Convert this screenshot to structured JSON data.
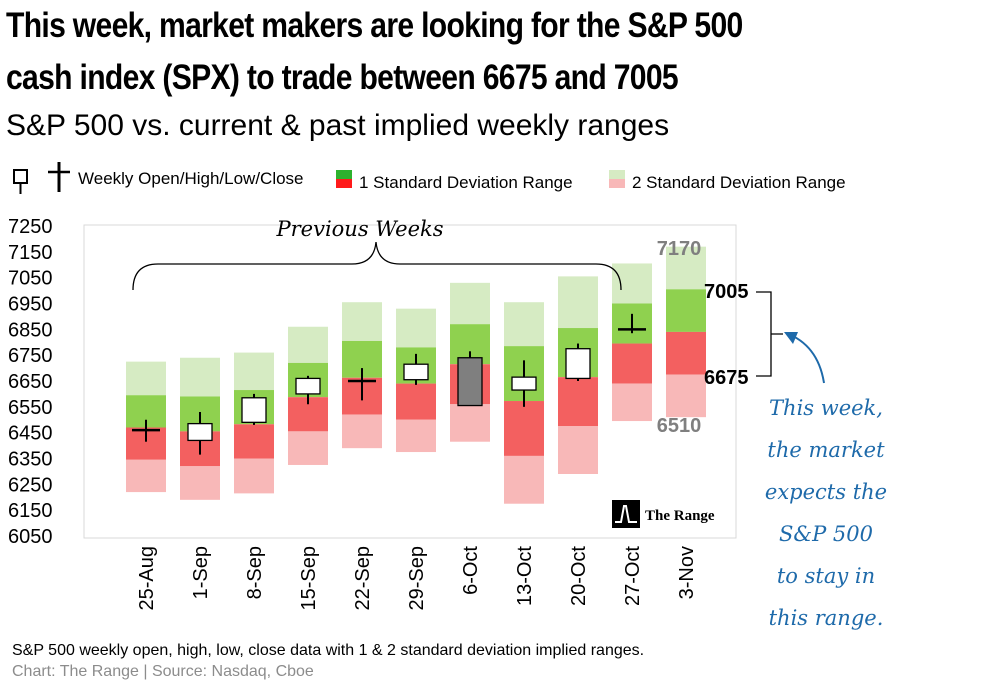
{
  "title_line1": "This week, market makers are looking for the S&P 500",
  "title_line2": "cash index (SPX) to trade between  6675 and 7005",
  "subtitle": "S&P 500 vs. current & past implied weekly ranges",
  "legend": {
    "ohlc": "Weekly Open/High/Low/Close",
    "sd1": "1 Standard Deviation Range",
    "sd2": "2 Standard Deviation Range"
  },
  "annotation": "Previous Weeks",
  "logo_text": "The Range",
  "callout_lines": [
    "This week,",
    "the market",
    "expects the",
    "S&P 500",
    "to stay in",
    "this range."
  ],
  "footer_line1": "S&P 500 weekly open, high, low, close data with 1 & 2 standard deviation implied ranges.",
  "footer_line2": "Chart: The Range | Source: Nasdaq, Cboe",
  "colors": {
    "green_dark": "#8fd14f",
    "green_light": "#d6ebc3",
    "red_dark": "#f36060",
    "red_light": "#f8b8b8",
    "callout_blue": "#1e6aaa",
    "label_gray": "#7f7f7f",
    "down_candle": "#7f7f7f"
  },
  "chart_data": {
    "type": "candlestick_ranges",
    "y_ticks": [
      6050,
      6150,
      6250,
      6350,
      6450,
      6550,
      6650,
      6750,
      6850,
      6950,
      7050,
      7150,
      7250
    ],
    "ylim": [
      6050,
      7250
    ],
    "categories": [
      "25-Aug",
      "1-Sep",
      "8-Sep",
      "15-Sep",
      "22-Sep",
      "29-Sep",
      "6-Oct",
      "13-Oct",
      "20-Oct",
      "27-Oct",
      "3-Nov"
    ],
    "weeks": [
      {
        "week": "25-Aug",
        "open": 6460,
        "high": 6500,
        "low": 6415,
        "close": 6460,
        "sd1_low": 6345,
        "sd1_high": 6595,
        "sd2_low": 6220,
        "sd2_high": 6725
      },
      {
        "week": "1-Sep",
        "open": 6420,
        "high": 6530,
        "low": 6365,
        "close": 6485,
        "sd1_low": 6320,
        "sd1_high": 6590,
        "sd2_low": 6190,
        "sd2_high": 6740
      },
      {
        "week": "8-Sep",
        "open": 6490,
        "high": 6600,
        "low": 6480,
        "close": 6585,
        "sd1_low": 6350,
        "sd1_high": 6615,
        "sd2_low": 6215,
        "sd2_high": 6760
      },
      {
        "week": "15-Sep",
        "open": 6600,
        "high": 6670,
        "low": 6560,
        "close": 6660,
        "sd1_low": 6455,
        "sd1_high": 6720,
        "sd2_low": 6325,
        "sd2_high": 6860
      },
      {
        "week": "22-Sep",
        "open": 6650,
        "high": 6700,
        "low": 6575,
        "close": 6645,
        "sd1_low": 6520,
        "sd1_high": 6805,
        "sd2_low": 6390,
        "sd2_high": 6955
      },
      {
        "week": "29-Sep",
        "open": 6655,
        "high": 6755,
        "low": 6635,
        "close": 6715,
        "sd1_low": 6500,
        "sd1_high": 6780,
        "sd2_low": 6375,
        "sd2_high": 6930
      },
      {
        "week": "6-Oct",
        "open": 6740,
        "high": 6765,
        "low": 6555,
        "close": 6555,
        "sd1_low": 6560,
        "sd1_high": 6870,
        "sd2_low": 6415,
        "sd2_high": 7030
      },
      {
        "week": "13-Oct",
        "open": 6615,
        "high": 6730,
        "low": 6550,
        "close": 6665,
        "sd1_low": 6360,
        "sd1_high": 6785,
        "sd2_low": 6175,
        "sd2_high": 6955
      },
      {
        "week": "20-Oct",
        "open": 6660,
        "high": 6795,
        "low": 6650,
        "close": 6775,
        "sd1_low": 6475,
        "sd1_high": 6855,
        "sd2_low": 6290,
        "sd2_high": 7055
      },
      {
        "week": "27-Oct",
        "open": 6850,
        "high": 6910,
        "low": 6835,
        "close": 6850,
        "sd1_low": 6640,
        "sd1_high": 6950,
        "sd2_low": 6495,
        "sd2_high": 7105
      },
      {
        "week": "3-Nov",
        "sd1_low": 6675,
        "sd1_high": 7005,
        "sd2_low": 6510,
        "sd2_high": 7170
      }
    ],
    "current_labels": {
      "sd2_high": "7170",
      "sd1_high": "7005",
      "sd1_low": "6675",
      "sd2_low": "6510"
    }
  }
}
